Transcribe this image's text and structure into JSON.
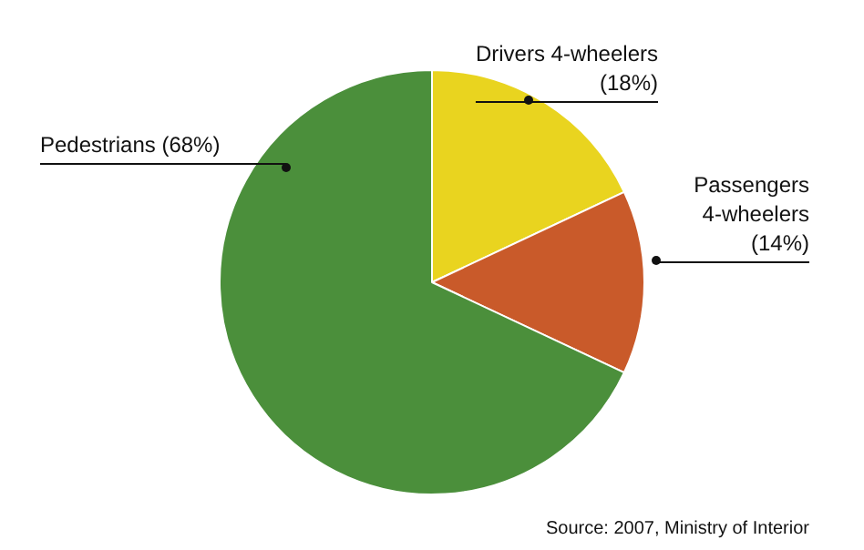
{
  "chart_data": {
    "type": "pie",
    "categories": [
      "Drivers 4-wheelers",
      "Passengers 4-wheelers",
      "Pedestrians"
    ],
    "values": [
      18,
      14,
      68
    ],
    "value_labels": [
      "(18%)",
      "(14%)",
      "(68%)"
    ],
    "colors": [
      "#e9d41f",
      "#c95a2a",
      "#4b8f3b"
    ],
    "legend": false,
    "annotations": [
      "Source: 2007, Ministry of Interior"
    ]
  }
}
